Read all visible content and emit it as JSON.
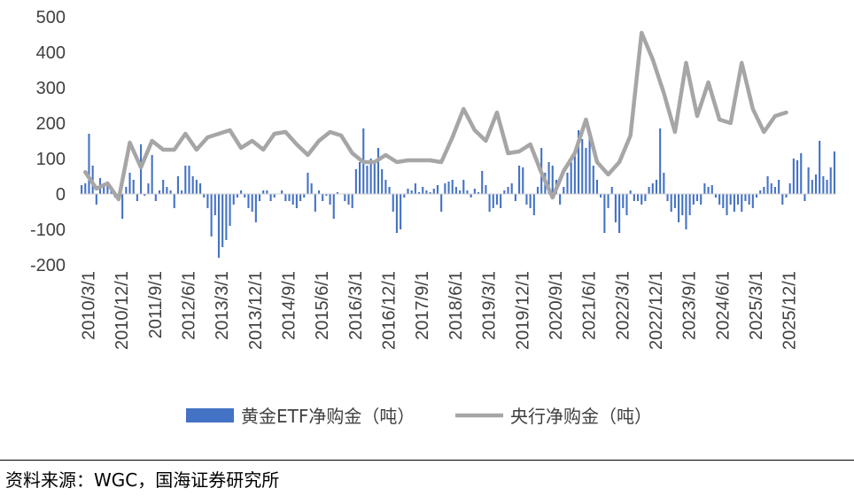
{
  "chart_data": {
    "type": "bar+line",
    "title": "",
    "xlabel": "",
    "ylabel": "",
    "ylim": [
      -200,
      500
    ],
    "yticks": [
      -200,
      -100,
      0,
      100,
      200,
      300,
      400,
      500
    ],
    "grid": false,
    "legend_position": "bottom-center",
    "x_tick_labels": [
      "2010/3/1",
      "2010/12/1",
      "2011/9/1",
      "2012/6/1",
      "2013/3/1",
      "2013/12/1",
      "2014/9/1",
      "2015/6/1",
      "2016/3/1",
      "2016/12/1",
      "2017/9/1",
      "2018/6/1",
      "2019/3/1",
      "2019/12/1",
      "2020/9/1",
      "2021/6/1",
      "2022/3/1",
      "2022/12/1",
      "2023/9/1",
      "2024/6/1",
      "2025/3/1",
      "2025/12/1"
    ],
    "bar_series": {
      "name": "黄金ETF净购金（吨）",
      "color": "#4472C4",
      "start": "2010/1",
      "frequency": "monthly",
      "values": [
        25,
        30,
        170,
        80,
        -30,
        45,
        30,
        25,
        20,
        -10,
        -20,
        -70,
        20,
        60,
        40,
        -20,
        140,
        -5,
        30,
        110,
        -20,
        10,
        40,
        20,
        10,
        -40,
        50,
        10,
        80,
        80,
        50,
        40,
        30,
        -10,
        -40,
        -120,
        -60,
        -180,
        -150,
        -130,
        -90,
        -30,
        -10,
        10,
        -10,
        -40,
        -50,
        -80,
        -20,
        10,
        10,
        -20,
        -10,
        0,
        10,
        -20,
        -20,
        -30,
        -40,
        -20,
        -10,
        60,
        30,
        -50,
        10,
        -20,
        -5,
        -30,
        -70,
        5,
        0,
        -20,
        -30,
        -40,
        70,
        90,
        185,
        80,
        100,
        90,
        130,
        70,
        40,
        20,
        -50,
        -110,
        -100,
        -10,
        15,
        10,
        30,
        5,
        20,
        10,
        5,
        15,
        25,
        -50,
        30,
        35,
        40,
        20,
        10,
        40,
        10,
        -10,
        15,
        5,
        65,
        25,
        -50,
        -40,
        -30,
        -40,
        10,
        20,
        30,
        -20,
        80,
        75,
        -30,
        -40,
        -60,
        20,
        130,
        60,
        90,
        80,
        40,
        -30,
        20,
        60,
        90,
        120,
        180,
        155,
        130,
        175,
        80,
        40,
        -10,
        -110,
        -40,
        20,
        -80,
        -110,
        -40,
        -60,
        10,
        -20,
        -20,
        -30,
        -20,
        20,
        30,
        40,
        185,
        60,
        -20,
        -50,
        -40,
        -80,
        -60,
        -100,
        -60,
        -30,
        -20,
        -30,
        30,
        20,
        25,
        -10,
        -30,
        -40,
        -60,
        -30,
        -50,
        -30,
        -50,
        -20,
        -30,
        -40,
        -10,
        10,
        20,
        50,
        30,
        20,
        40,
        -30,
        -10,
        30,
        100,
        95,
        115,
        -20,
        75,
        40,
        55,
        150,
        50,
        40,
        75,
        120
      ],
      "label_in_legend": "黄金ETF净购金（吨）"
    },
    "line_series": {
      "name": "央行净购金（吨）",
      "color": "#A6A6A6",
      "frequency": "quarterly",
      "start": "2010Q1",
      "values": [
        62,
        15,
        30,
        -15,
        145,
        75,
        150,
        125,
        125,
        170,
        125,
        160,
        170,
        180,
        130,
        150,
        125,
        170,
        175,
        140,
        110,
        150,
        175,
        165,
        115,
        90,
        90,
        110,
        90,
        95,
        95,
        95,
        90,
        160,
        240,
        180,
        150,
        230,
        115,
        120,
        140,
        60,
        -10,
        65,
        115,
        210,
        90,
        55,
        90,
        165,
        455,
        380,
        285,
        175,
        370,
        220,
        315,
        210,
        200,
        370,
        240,
        175,
        220,
        230
      ]
    }
  },
  "legend": {
    "bar_label": "黄金ETF净购金（吨）",
    "line_label": "央行净购金（吨）"
  },
  "source": {
    "text": "资料来源：WGC，国海证券研究所"
  }
}
